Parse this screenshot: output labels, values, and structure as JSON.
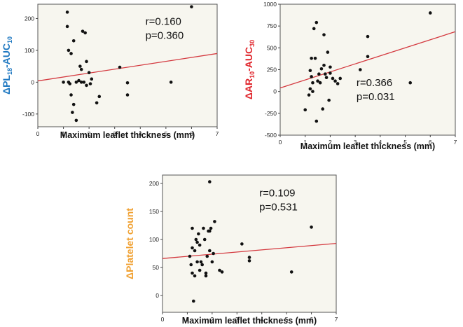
{
  "chart_data": [
    {
      "type": "scatter",
      "ylabel": {
        "parts": [
          {
            "t": "ΔPL"
          },
          {
            "t": "18",
            "sub": true
          },
          {
            "t": "-AUC"
          },
          {
            "t": "10",
            "sub": true
          }
        ],
        "color": "#1f78c1"
      },
      "xlabel": "Maximum leaflet thickness (mm)",
      "xlim": [
        0,
        7
      ],
      "ylim": [
        -140,
        245
      ],
      "xticks": [
        0,
        1,
        2,
        3,
        4,
        5,
        6,
        7
      ],
      "yticks": [
        -100,
        0,
        100,
        200
      ],
      "stats": {
        "r": "r=0.160",
        "p": "p=0.360",
        "anchor": [
          4.2,
          180
        ]
      },
      "fit": {
        "x": [
          0,
          7
        ],
        "y": [
          4,
          90
        ]
      },
      "points": [
        [
          1.0,
          0
        ],
        [
          1.15,
          220
        ],
        [
          1.15,
          175
        ],
        [
          1.2,
          100
        ],
        [
          1.2,
          0
        ],
        [
          1.25,
          -5
        ],
        [
          1.3,
          90
        ],
        [
          1.3,
          -40
        ],
        [
          1.35,
          -95
        ],
        [
          1.4,
          -70
        ],
        [
          1.4,
          130
        ],
        [
          1.5,
          -120
        ],
        [
          1.5,
          0
        ],
        [
          1.6,
          5
        ],
        [
          1.65,
          50
        ],
        [
          1.7,
          40
        ],
        [
          1.7,
          0
        ],
        [
          1.75,
          160
        ],
        [
          1.8,
          0
        ],
        [
          1.85,
          155
        ],
        [
          1.9,
          65
        ],
        [
          1.9,
          -10
        ],
        [
          2.0,
          30
        ],
        [
          2.05,
          -5
        ],
        [
          2.1,
          10
        ],
        [
          2.3,
          -65
        ],
        [
          2.4,
          -45
        ],
        [
          3.2,
          47
        ],
        [
          3.5,
          -2
        ],
        [
          3.5,
          -40
        ],
        [
          5.2,
          0
        ],
        [
          6.0,
          237
        ]
      ]
    },
    {
      "type": "scatter",
      "ylabel": {
        "parts": [
          {
            "t": "ΔAR"
          },
          {
            "t": "10",
            "sub": true
          },
          {
            "t": "-AUC"
          },
          {
            "t": "30",
            "sub": true
          }
        ],
        "color": "#e0262c"
      },
      "xlabel": "Maximum leaflet thickness (mm)",
      "xlim": [
        0,
        7
      ],
      "ylim": [
        -500,
        1000
      ],
      "xticks": [
        0,
        1,
        2,
        3,
        4,
        5,
        6,
        7
      ],
      "yticks": [
        -500,
        -250,
        0,
        250,
        500,
        750,
        1000
      ],
      "stats": {
        "r": "r=0.366",
        "p": "p=0.031",
        "anchor": [
          3.05,
          60
        ]
      },
      "fit": {
        "x": [
          0,
          7
        ],
        "y": [
          40,
          685
        ]
      },
      "points": [
        [
          1.0,
          -210
        ],
        [
          1.15,
          -40
        ],
        [
          1.2,
          30
        ],
        [
          1.2,
          240
        ],
        [
          1.25,
          170
        ],
        [
          1.25,
          380
        ],
        [
          1.3,
          0
        ],
        [
          1.3,
          100
        ],
        [
          1.35,
          720
        ],
        [
          1.4,
          380
        ],
        [
          1.45,
          790
        ],
        [
          1.45,
          -340
        ],
        [
          1.5,
          120
        ],
        [
          1.55,
          200
        ],
        [
          1.6,
          100
        ],
        [
          1.65,
          260
        ],
        [
          1.7,
          -200
        ],
        [
          1.75,
          650
        ],
        [
          1.75,
          300
        ],
        [
          1.8,
          200
        ],
        [
          1.85,
          160
        ],
        [
          1.9,
          450
        ],
        [
          1.95,
          -100
        ],
        [
          2.0,
          210
        ],
        [
          2.0,
          280
        ],
        [
          2.1,
          150
        ],
        [
          2.2,
          120
        ],
        [
          2.3,
          90
        ],
        [
          2.4,
          150
        ],
        [
          3.2,
          250
        ],
        [
          3.5,
          630
        ],
        [
          3.5,
          400
        ],
        [
          5.2,
          100
        ],
        [
          6.0,
          900
        ]
      ]
    },
    {
      "type": "scatter",
      "ylabel": {
        "parts": [
          {
            "t": "ΔPlatelet count"
          }
        ],
        "color": "#f0a030"
      },
      "xlabel": "Maximum leaflet thickness (mm)",
      "xlim": [
        0,
        7
      ],
      "ylim": [
        -30,
        215
      ],
      "xticks": [
        0,
        1,
        2,
        3,
        4,
        5,
        6,
        7
      ],
      "yticks": [
        0,
        50,
        100,
        150,
        200
      ],
      "stats": {
        "r": "r=0.109",
        "p": "p=0.531",
        "anchor": [
          3.9,
          177
        ]
      },
      "fit": {
        "x": [
          0,
          7
        ],
        "y": [
          66,
          93
        ]
      },
      "points": [
        [
          1.1,
          70
        ],
        [
          1.15,
          55
        ],
        [
          1.2,
          40
        ],
        [
          1.2,
          120
        ],
        [
          1.2,
          85
        ],
        [
          1.25,
          -10
        ],
        [
          1.3,
          35
        ],
        [
          1.3,
          80
        ],
        [
          1.35,
          100
        ],
        [
          1.4,
          60
        ],
        [
          1.4,
          95
        ],
        [
          1.45,
          110
        ],
        [
          1.5,
          45
        ],
        [
          1.5,
          90
        ],
        [
          1.55,
          60
        ],
        [
          1.6,
          55
        ],
        [
          1.65,
          120
        ],
        [
          1.7,
          100
        ],
        [
          1.75,
          40
        ],
        [
          1.75,
          35
        ],
        [
          1.8,
          70
        ],
        [
          1.85,
          115
        ],
        [
          1.9,
          80
        ],
        [
          1.9,
          115
        ],
        [
          1.95,
          120
        ],
        [
          1.9,
          203
        ],
        [
          2.0,
          60
        ],
        [
          2.05,
          75
        ],
        [
          2.1,
          132
        ],
        [
          2.3,
          45
        ],
        [
          2.4,
          42
        ],
        [
          3.2,
          92
        ],
        [
          3.5,
          62
        ],
        [
          3.5,
          68
        ],
        [
          5.2,
          42
        ],
        [
          6.0,
          122
        ]
      ]
    }
  ]
}
